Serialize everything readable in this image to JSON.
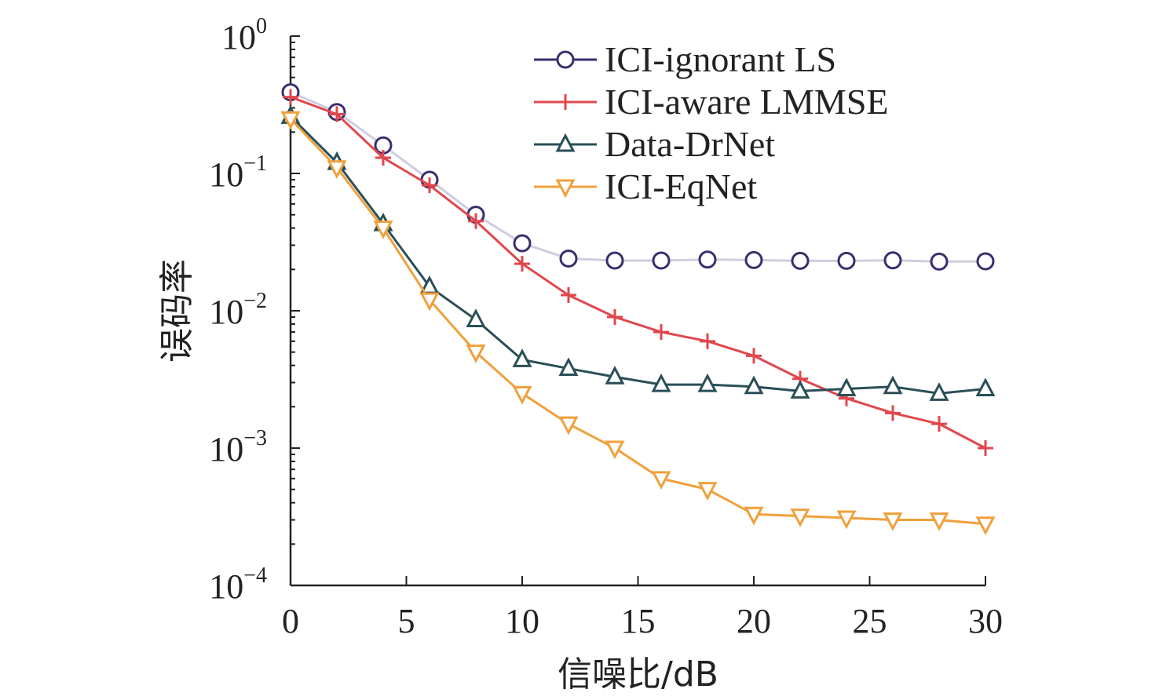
{
  "chart_data": {
    "type": "line",
    "title": "",
    "xlabel": "信噪比/dB",
    "ylabel": "误码率",
    "xlim": [
      0,
      30
    ],
    "ylim": [
      0.0001,
      1
    ],
    "yscale": "log",
    "x_ticks": [
      0,
      5,
      10,
      15,
      20,
      25,
      30
    ],
    "y_ticks": [
      {
        "value": 1,
        "base": "10",
        "exp": "0"
      },
      {
        "value": 0.1,
        "base": "10",
        "exp": "−1"
      },
      {
        "value": 0.01,
        "base": "10",
        "exp": "−2"
      },
      {
        "value": 0.001,
        "base": "10",
        "exp": "−3"
      },
      {
        "value": 0.0001,
        "base": "10",
        "exp": "−4"
      }
    ],
    "legend_position": "top-right",
    "grid": false,
    "x": [
      0,
      2,
      4,
      6,
      8,
      10,
      12,
      14,
      16,
      18,
      20,
      22,
      24,
      26,
      28,
      30
    ],
    "series": [
      {
        "name": "ICI-ignorant LS",
        "color": "#3b2d6e",
        "line_color": "#cfcde0",
        "marker": "circle",
        "values": [
          0.39,
          0.28,
          0.16,
          0.09,
          0.05,
          0.031,
          0.024,
          0.0232,
          0.0232,
          0.0236,
          0.0234,
          0.0231,
          0.0231,
          0.0233,
          0.0228,
          0.0229
        ]
      },
      {
        "name": "ICI-aware LMMSE",
        "color": "#e0474c",
        "line_color": "#e0474c",
        "marker": "plus",
        "values": [
          0.36,
          0.27,
          0.13,
          0.082,
          0.045,
          0.022,
          0.013,
          0.009,
          0.007,
          0.006,
          0.0047,
          0.0032,
          0.0023,
          0.0018,
          0.0015,
          0.001
        ]
      },
      {
        "name": "Data-DrNet",
        "color": "#2a4f57",
        "line_color": "#2a4f57",
        "marker": "triangle-up",
        "values": [
          0.26,
          0.12,
          0.043,
          0.015,
          0.0086,
          0.0044,
          0.0038,
          0.0033,
          0.0029,
          0.0029,
          0.0028,
          0.0026,
          0.0027,
          0.0028,
          0.0025,
          0.0027
        ]
      },
      {
        "name": "ICI-EqNet",
        "color": "#f0a03c",
        "line_color": "#f0a03c",
        "marker": "triangle-down",
        "values": [
          0.25,
          0.11,
          0.04,
          0.012,
          0.005,
          0.0025,
          0.0015,
          0.001,
          0.0006,
          0.0005,
          0.00033,
          0.00032,
          0.00031,
          0.0003,
          0.0003,
          0.00028
        ]
      }
    ]
  }
}
